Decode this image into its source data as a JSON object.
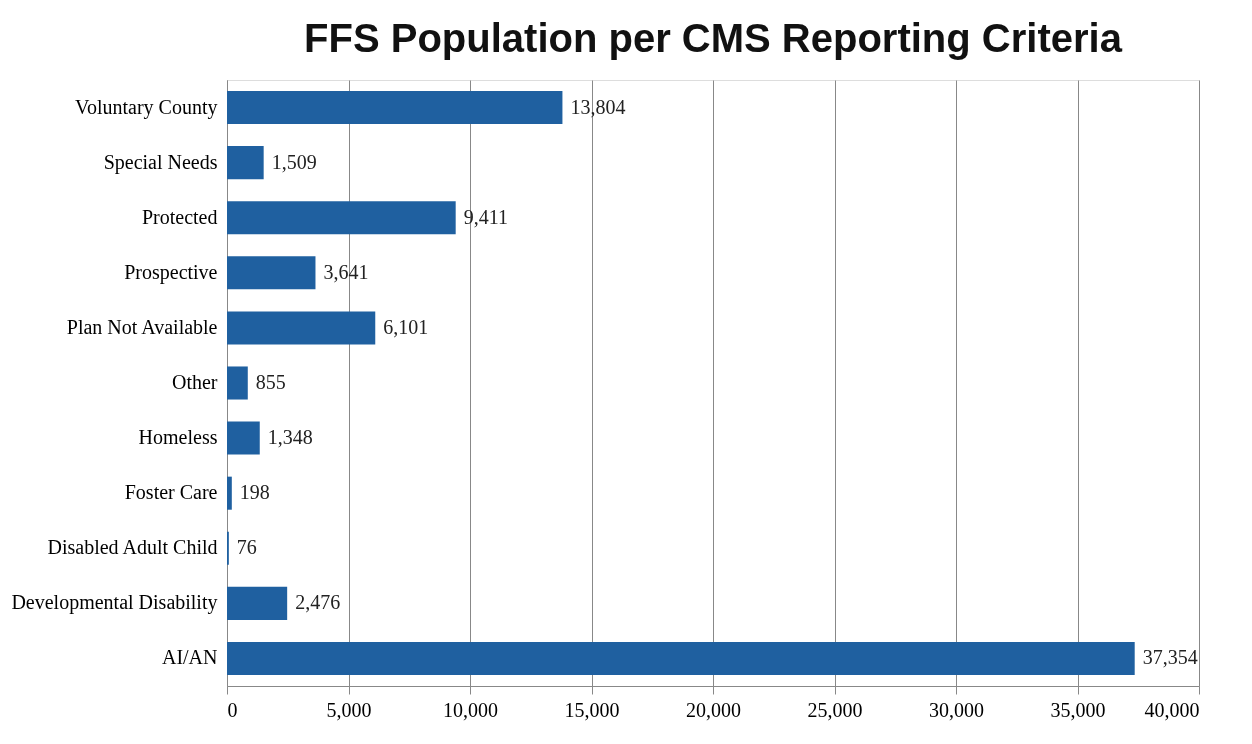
{
  "chart_data": {
    "type": "bar",
    "orientation": "horizontal",
    "title": "FFS Population per CMS Reporting Criteria",
    "categories": [
      "Voluntary County",
      "Special Needs",
      "Protected",
      "Prospective",
      "Plan Not Available",
      "Other",
      "Homeless",
      "Foster Care",
      "Disabled Adult Child",
      "Developmental Disability",
      "AI/AN"
    ],
    "values": [
      13804,
      1509,
      9411,
      3641,
      6101,
      855,
      1348,
      198,
      76,
      2476,
      37354
    ],
    "value_labels": [
      "13,804",
      "1,509",
      "9,411",
      "3,641",
      "6,101",
      "855",
      "1,348",
      "198",
      "76",
      "2,476",
      "37,354"
    ],
    "color": "#1f60a0",
    "xlim": [
      0,
      40000
    ],
    "xticks": [
      0,
      {
        "value": 5000,
        "label": "5,000"
      },
      {
        "value": 10000,
        "label": "10,000"
      },
      {
        "value": 15000,
        "label": "15,000"
      },
      {
        "value": 20000,
        "label": "20,000"
      },
      {
        "value": 25000,
        "label": "25,000"
      },
      {
        "value": 30000,
        "label": "30,000"
      },
      {
        "value": 35000,
        "label": "35,000"
      },
      {
        "value": 40000,
        "label": "40,000"
      }
    ],
    "grid": "x"
  }
}
